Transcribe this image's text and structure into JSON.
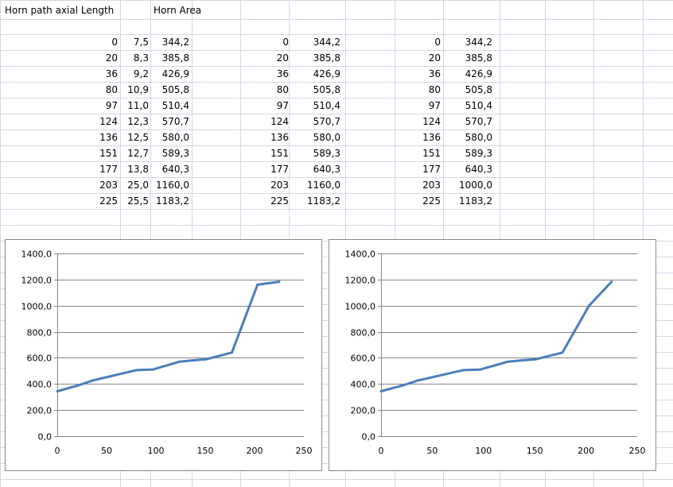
{
  "headers": {
    "col1": "Horn path axial Length",
    "col2": "Horn Area"
  },
  "table1": {
    "rows": [
      [
        "0",
        "7,5",
        "344,2"
      ],
      [
        "20",
        "8,3",
        "385,8"
      ],
      [
        "36",
        "9,2",
        "426,9"
      ],
      [
        "80",
        "10,9",
        "505,8"
      ],
      [
        "97",
        "11,0",
        "510,4"
      ],
      [
        "124",
        "12,3",
        "570,7"
      ],
      [
        "136",
        "12,5",
        "580,0"
      ],
      [
        "151",
        "12,7",
        "589,3"
      ],
      [
        "177",
        "13,8",
        "640,3"
      ],
      [
        "203",
        "25,0",
        "1160,0"
      ],
      [
        "225",
        "25,5",
        "1183,2"
      ]
    ]
  },
  "table2": {
    "rows": [
      [
        "0",
        "344,2"
      ],
      [
        "20",
        "385,8"
      ],
      [
        "36",
        "426,9"
      ],
      [
        "80",
        "505,8"
      ],
      [
        "97",
        "510,4"
      ],
      [
        "124",
        "570,7"
      ],
      [
        "136",
        "580,0"
      ],
      [
        "151",
        "589,3"
      ],
      [
        "177",
        "640,3"
      ],
      [
        "203",
        "1160,0"
      ],
      [
        "225",
        "1183,2"
      ]
    ]
  },
  "table3": {
    "rows": [
      [
        "0",
        "344,2"
      ],
      [
        "20",
        "385,8"
      ],
      [
        "36",
        "426,9"
      ],
      [
        "80",
        "505,8"
      ],
      [
        "97",
        "510,4"
      ],
      [
        "124",
        "570,7"
      ],
      [
        "136",
        "580,0"
      ],
      [
        "151",
        "589,3"
      ],
      [
        "177",
        "640,3"
      ],
      [
        "203",
        "1000,0"
      ],
      [
        "225",
        "1183,2"
      ]
    ]
  },
  "chart_data": [
    {
      "type": "line",
      "title": "",
      "xlabel": "",
      "ylabel": "",
      "xlim": [
        0,
        250
      ],
      "ylim": [
        0,
        1400
      ],
      "x_ticks": [
        0,
        50,
        100,
        150,
        200,
        250
      ],
      "y_ticks": [
        0,
        200,
        400,
        600,
        800,
        1000,
        1200,
        1400
      ],
      "y_tick_labels": [
        "0,0",
        "200,0",
        "400,0",
        "600,0",
        "800,0",
        "1000,0",
        "1200,0",
        "1400,0"
      ],
      "grid": true,
      "color": "#4a7ebb",
      "series": [
        {
          "x": [
            0,
            20,
            36,
            80,
            97,
            124,
            136,
            151,
            177,
            203,
            225
          ],
          "values": [
            344.2,
            385.8,
            426.9,
            505.8,
            510.4,
            570.7,
            580.0,
            589.3,
            640.3,
            1160.0,
            1183.2
          ]
        }
      ]
    },
    {
      "type": "line",
      "title": "",
      "xlabel": "",
      "ylabel": "",
      "xlim": [
        0,
        250
      ],
      "ylim": [
        0,
        1400
      ],
      "x_ticks": [
        0,
        50,
        100,
        150,
        200,
        250
      ],
      "y_ticks": [
        0,
        200,
        400,
        600,
        800,
        1000,
        1200,
        1400
      ],
      "y_tick_labels": [
        "0,0",
        "200,0",
        "400,0",
        "600,0",
        "800,0",
        "1000,0",
        "1200,0",
        "1400,0"
      ],
      "grid": true,
      "color": "#4a7ebb",
      "series": [
        {
          "x": [
            0,
            20,
            36,
            80,
            97,
            124,
            136,
            151,
            177,
            203,
            225
          ],
          "values": [
            344.2,
            385.8,
            426.9,
            505.8,
            510.4,
            570.7,
            580.0,
            589.3,
            640.3,
            1000.0,
            1183.2
          ]
        }
      ]
    }
  ]
}
